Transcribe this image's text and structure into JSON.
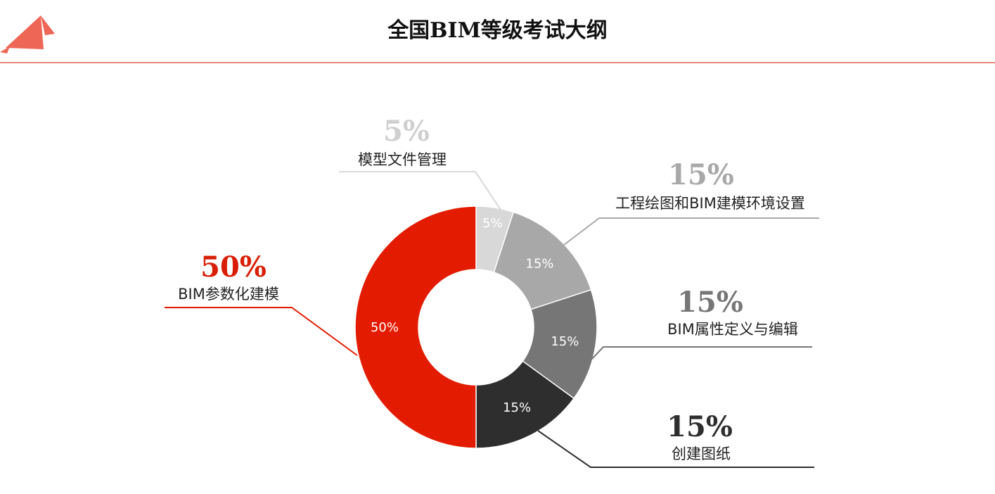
{
  "header": {
    "title": "全国BIM等级考试大纲",
    "accent_color": "#ee6655",
    "logo_icon": "arrow-triangles-icon"
  },
  "chart_data": {
    "type": "pie",
    "donut": true,
    "legend": "callouts",
    "slices": [
      {
        "name": "模型文件管理",
        "value": 5,
        "label": "5%",
        "color": "#d8d8d8"
      },
      {
        "name": "工程绘图和BIM建模环境设置",
        "value": 15,
        "label": "15%",
        "color": "#a8a8a8"
      },
      {
        "name": "BIM属性定义与编辑",
        "value": 15,
        "label": "15%",
        "color": "#767676"
      },
      {
        "name": "创建图纸",
        "value": 15,
        "label": "15%",
        "color": "#2e2e2e"
      },
      {
        "name": "BIM参数化建模",
        "value": 50,
        "label": "50%",
        "color": "#e31b00"
      }
    ]
  }
}
